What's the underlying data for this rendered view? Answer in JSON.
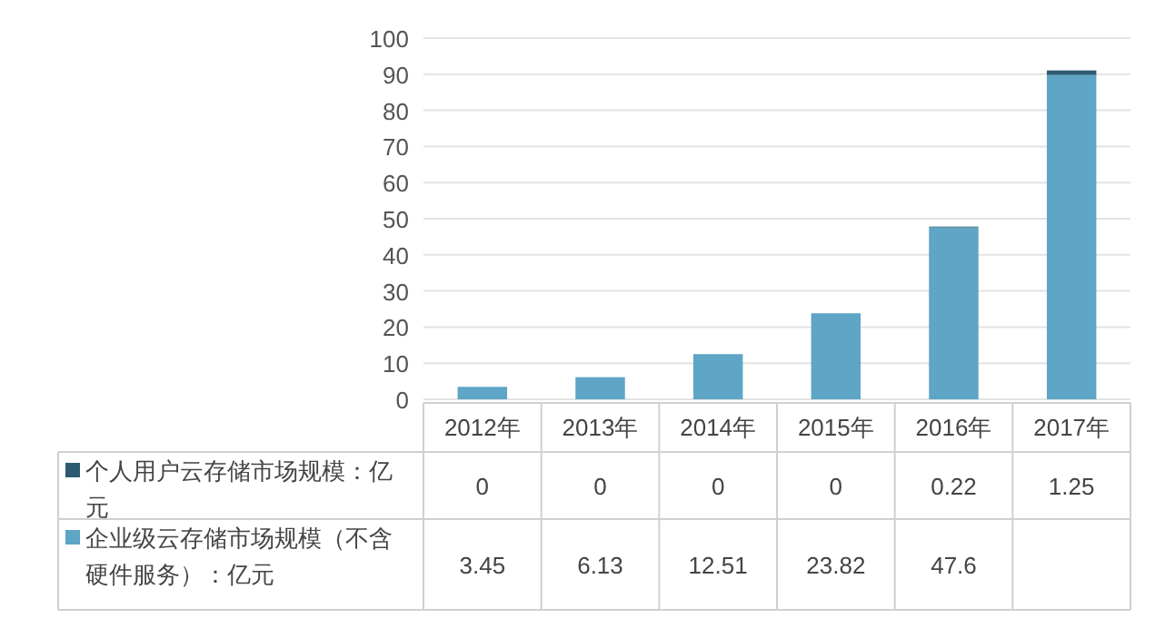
{
  "chart_data": {
    "type": "bar",
    "stacked": true,
    "categories": [
      "2012年",
      "2013年",
      "2014年",
      "2015年",
      "2016年",
      "2017年"
    ],
    "series": [
      {
        "name": "企业级云存储市场规模（不含硬件服务）：亿元",
        "color": "#5ea5c6",
        "values": [
          3.45,
          6.13,
          12.51,
          23.82,
          47.6,
          89.8
        ],
        "value_labels": [
          "3.45",
          "6.13",
          "12.51",
          "23.82",
          "47.6",
          null
        ]
      },
      {
        "name": "个人用户云存储市场规模：亿元",
        "color": "#2d5a70",
        "values": [
          0,
          0,
          0,
          0,
          0.22,
          1.25
        ],
        "value_labels": [
          "0",
          "0",
          "0",
          "0",
          "0.22",
          "1.25"
        ]
      }
    ],
    "ylim": [
      0,
      100
    ],
    "yticks": [
      0,
      10,
      20,
      30,
      40,
      50,
      60,
      70,
      80,
      90,
      100
    ],
    "grid": "y",
    "legend": "bottom left"
  }
}
